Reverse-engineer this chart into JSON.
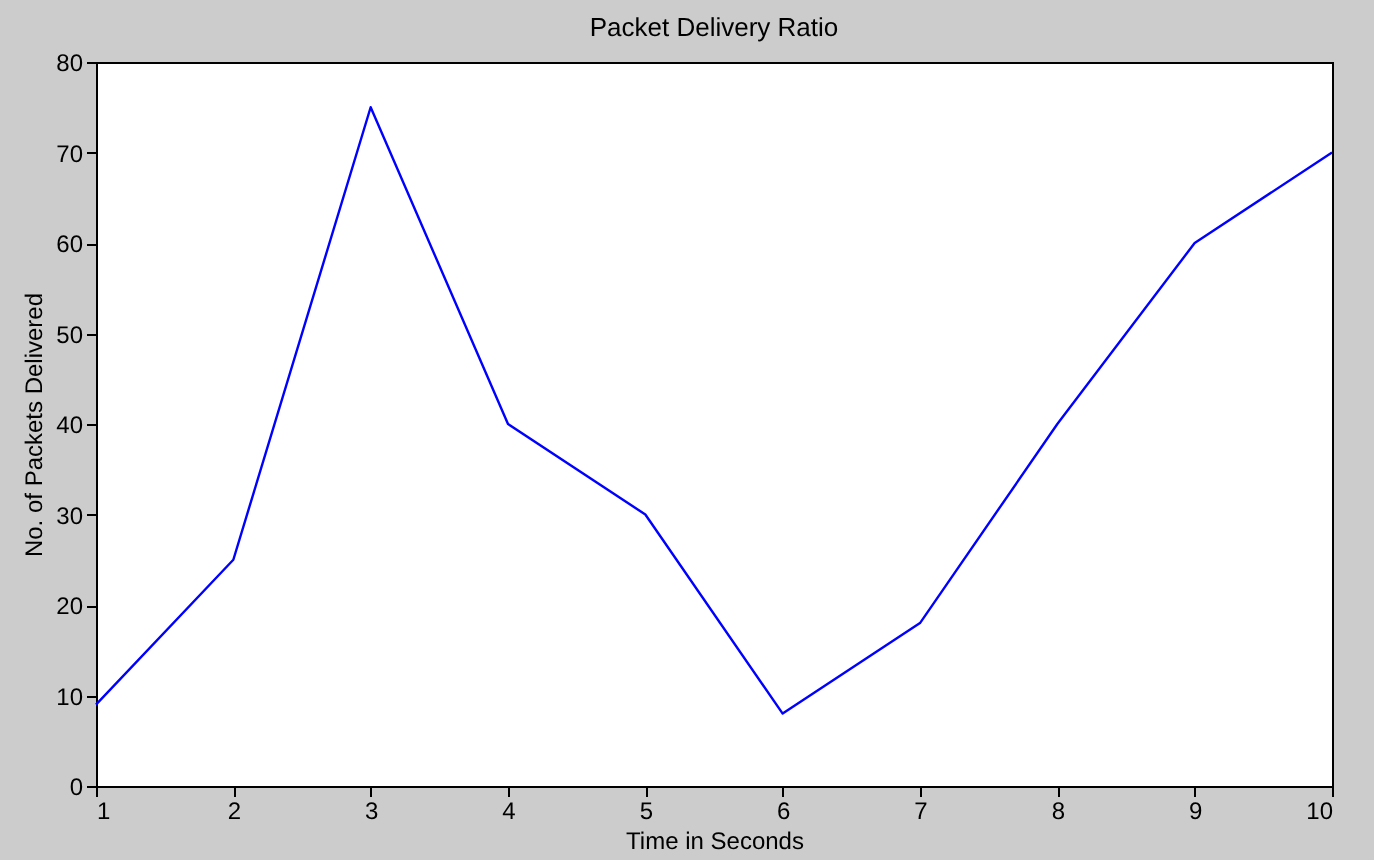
{
  "chart_data": {
    "type": "line",
    "title": "Packet Delivery Ratio",
    "xlabel": "Time in Seconds",
    "ylabel": "No. of Packets Delivered",
    "x": [
      1,
      2,
      3,
      4,
      5,
      6,
      7,
      8,
      9,
      10
    ],
    "series": [
      {
        "color": "#0000ff",
        "values": [
          9,
          25,
          75,
          40,
          30,
          8,
          18,
          40,
          60,
          70
        ]
      }
    ],
    "xlim": [
      1,
      10
    ],
    "xticks": [
      1,
      2,
      3,
      4,
      5,
      6,
      7,
      8,
      9,
      10
    ],
    "ylim": [
      0,
      80
    ],
    "yticks": [
      0,
      10,
      20,
      30,
      40,
      50,
      60,
      70,
      80
    ],
    "grid": false,
    "marker": "none",
    "line_style": "solid"
  }
}
